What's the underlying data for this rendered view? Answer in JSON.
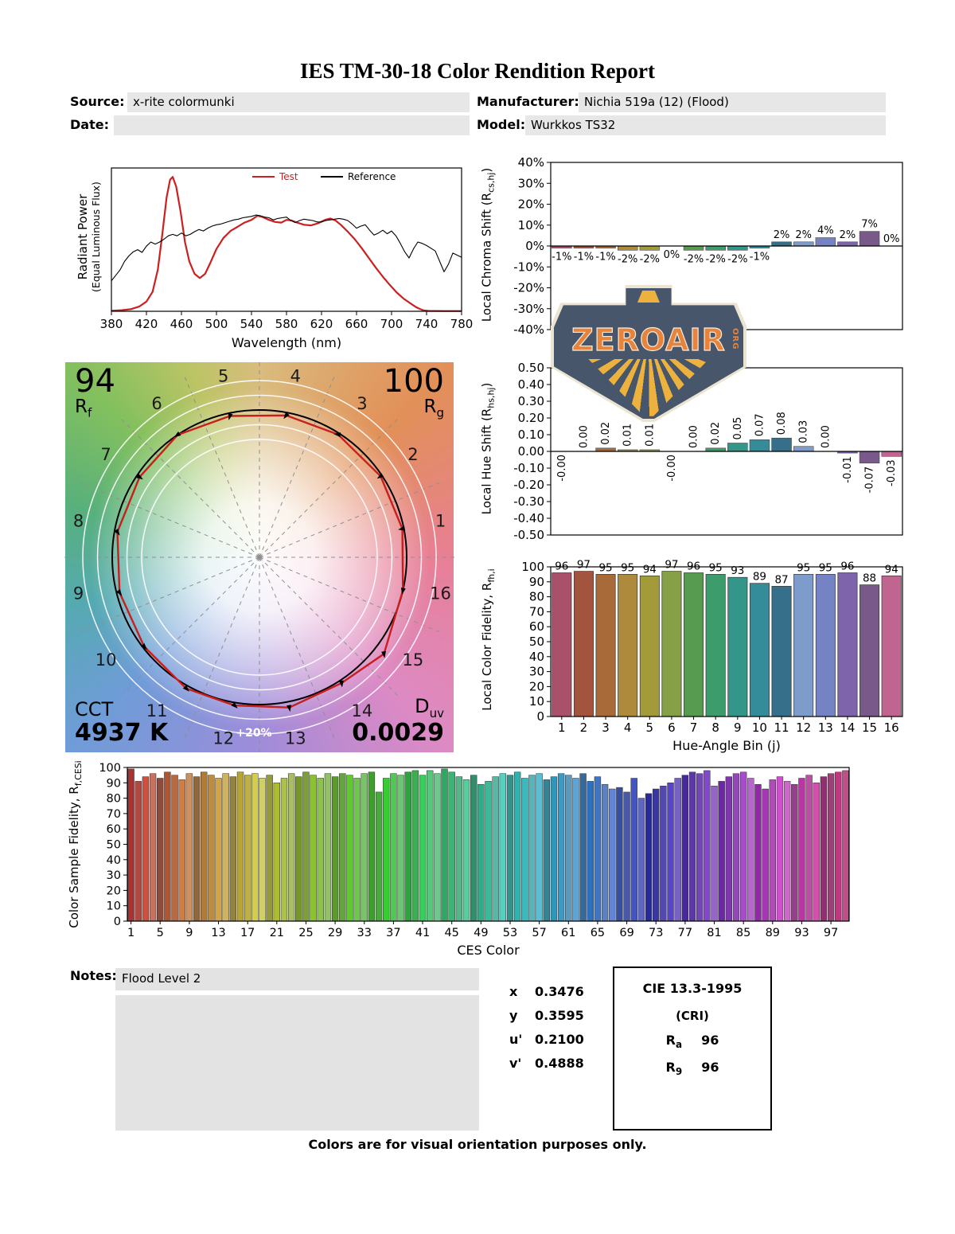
{
  "title": "IES TM-30-18 Color Rendition Report",
  "meta": {
    "source_label": "Source:",
    "source_value": "x-rite colormunki",
    "manufacturer_label": "Manufacturer:",
    "manufacturer_value": "Nichia 519a (12) (Flood)",
    "date_label": "Date:",
    "date_value": "",
    "model_label": "Model:",
    "model_value": "Wurkkos TS32"
  },
  "watermark": {
    "wordmark": "ZEROAIR",
    "org": "ORG",
    "accent": "#e8833c",
    "body_color": "#47566a",
    "ray_color": "#edb23e"
  },
  "cvg": {
    "rf_value": "94",
    "rf_label_main": "R",
    "rf_label_sub": "f",
    "rg_value": "100",
    "rg_label_main": "R",
    "rg_label_sub": "g",
    "cct_label": "CCT",
    "cct_value": "4937 K",
    "duv_label_main": "D",
    "duv_label_sub": "uv",
    "duv_value": "0.0029",
    "plus20": "+20%"
  },
  "notes": {
    "label": "Notes:",
    "value": "Flood Level 2"
  },
  "chromaticity": {
    "rows": [
      {
        "label": "x",
        "value": "0.3476"
      },
      {
        "label": "y",
        "value": "0.3595"
      },
      {
        "label": "u'",
        "value": "0.2100"
      },
      {
        "label": "v'",
        "value": "0.4888"
      }
    ]
  },
  "cri_box": {
    "title": "CIE 13.3-1995",
    "subtitle": "(CRI)",
    "ra_main": "R",
    "ra_sub": "a",
    "ra_value": "96",
    "r9_main": "R",
    "r9_sub": "9",
    "r9_value": "96"
  },
  "footer": "Colors are for visual orientation purposes only.",
  "chart_data": [
    {
      "id": "spd",
      "type": "line",
      "ylabel_lines": [
        "Radiant Power",
        "(Equal Luminous Flux)"
      ],
      "xlabel": "Wavelength (nm)",
      "xlim": [
        380,
        780
      ],
      "xticks": [
        380,
        420,
        460,
        500,
        540,
        580,
        620,
        660,
        700,
        740,
        780
      ],
      "legend": [
        {
          "name": "Test",
          "color": "#cc2020"
        },
        {
          "name": "Reference",
          "color": "#000000"
        }
      ],
      "series": [
        {
          "name": "Test",
          "color": "#cc2020",
          "width": 2.2,
          "points": [
            [
              380,
              0.004
            ],
            [
              392,
              0.008
            ],
            [
              402,
              0.015
            ],
            [
              412,
              0.035
            ],
            [
              420,
              0.07
            ],
            [
              427,
              0.14
            ],
            [
              433,
              0.3
            ],
            [
              438,
              0.55
            ],
            [
              443,
              0.82
            ],
            [
              447,
              0.95
            ],
            [
              450,
              0.97
            ],
            [
              454,
              0.9
            ],
            [
              459,
              0.72
            ],
            [
              464,
              0.5
            ],
            [
              469,
              0.36
            ],
            [
              475,
              0.27
            ],
            [
              481,
              0.24
            ],
            [
              487,
              0.27
            ],
            [
              493,
              0.35
            ],
            [
              500,
              0.45
            ],
            [
              508,
              0.53
            ],
            [
              516,
              0.58
            ],
            [
              524,
              0.61
            ],
            [
              532,
              0.64
            ],
            [
              540,
              0.66
            ],
            [
              547,
              0.69
            ],
            [
              553,
              0.68
            ],
            [
              560,
              0.66
            ],
            [
              567,
              0.645
            ],
            [
              574,
              0.64
            ],
            [
              580,
              0.66
            ],
            [
              586,
              0.655
            ],
            [
              592,
              0.64
            ],
            [
              600,
              0.625
            ],
            [
              608,
              0.62
            ],
            [
              616,
              0.635
            ],
            [
              624,
              0.66
            ],
            [
              630,
              0.67
            ],
            [
              636,
              0.655
            ],
            [
              642,
              0.625
            ],
            [
              650,
              0.575
            ],
            [
              658,
              0.52
            ],
            [
              666,
              0.455
            ],
            [
              674,
              0.385
            ],
            [
              682,
              0.315
            ],
            [
              690,
              0.25
            ],
            [
              698,
              0.19
            ],
            [
              706,
              0.135
            ],
            [
              714,
              0.09
            ],
            [
              722,
              0.055
            ],
            [
              728,
              0.03
            ],
            [
              733,
              0.015
            ],
            [
              737,
              0.006
            ],
            [
              742,
              0.003
            ],
            [
              760,
              0.002
            ],
            [
              780,
              0.002
            ]
          ]
        },
        {
          "name": "Reference",
          "color": "#000000",
          "width": 1.1,
          "points": [
            [
              380,
              0.22
            ],
            [
              385,
              0.26
            ],
            [
              390,
              0.3
            ],
            [
              395,
              0.36
            ],
            [
              400,
              0.4
            ],
            [
              405,
              0.43
            ],
            [
              410,
              0.445
            ],
            [
              415,
              0.425
            ],
            [
              420,
              0.47
            ],
            [
              425,
              0.5
            ],
            [
              430,
              0.485
            ],
            [
              435,
              0.5
            ],
            [
              440,
              0.52
            ],
            [
              445,
              0.545
            ],
            [
              450,
              0.555
            ],
            [
              455,
              0.545
            ],
            [
              460,
              0.565
            ],
            [
              465,
              0.545
            ],
            [
              470,
              0.555
            ],
            [
              475,
              0.575
            ],
            [
              480,
              0.59
            ],
            [
              485,
              0.58
            ],
            [
              490,
              0.6
            ],
            [
              495,
              0.615
            ],
            [
              500,
              0.625
            ],
            [
              505,
              0.63
            ],
            [
              510,
              0.64
            ],
            [
              515,
              0.65
            ],
            [
              520,
              0.66
            ],
            [
              525,
              0.665
            ],
            [
              530,
              0.675
            ],
            [
              535,
              0.68
            ],
            [
              540,
              0.685
            ],
            [
              545,
              0.695
            ],
            [
              550,
              0.69
            ],
            [
              555,
              0.68
            ],
            [
              560,
              0.675
            ],
            [
              565,
              0.66
            ],
            [
              570,
              0.67
            ],
            [
              575,
              0.675
            ],
            [
              580,
              0.68
            ],
            [
              585,
              0.655
            ],
            [
              590,
              0.64
            ],
            [
              595,
              0.655
            ],
            [
              600,
              0.665
            ],
            [
              605,
              0.66
            ],
            [
              610,
              0.655
            ],
            [
              615,
              0.645
            ],
            [
              620,
              0.645
            ],
            [
              625,
              0.655
            ],
            [
              630,
              0.66
            ],
            [
              635,
              0.665
            ],
            [
              640,
              0.67
            ],
            [
              645,
              0.665
            ],
            [
              650,
              0.655
            ],
            [
              655,
              0.63
            ],
            [
              660,
              0.6
            ],
            [
              665,
              0.615
            ],
            [
              670,
              0.625
            ],
            [
              675,
              0.585
            ],
            [
              680,
              0.55
            ],
            [
              685,
              0.565
            ],
            [
              690,
              0.585
            ],
            [
              695,
              0.56
            ],
            [
              700,
              0.58
            ],
            [
              705,
              0.545
            ],
            [
              710,
              0.49
            ],
            [
              715,
              0.43
            ],
            [
              720,
              0.385
            ],
            [
              725,
              0.45
            ],
            [
              730,
              0.5
            ],
            [
              735,
              0.49
            ],
            [
              740,
              0.475
            ],
            [
              745,
              0.455
            ],
            [
              750,
              0.435
            ],
            [
              755,
              0.36
            ],
            [
              760,
              0.285
            ],
            [
              765,
              0.34
            ],
            [
              770,
              0.42
            ],
            [
              775,
              0.405
            ],
            [
              780,
              0.39
            ]
          ]
        }
      ]
    },
    {
      "id": "chroma_shift",
      "type": "bar",
      "ylabel_parts": [
        "Local Chroma Shift (R",
        "cs,hj",
        ")"
      ],
      "ylim": [
        -40,
        40
      ],
      "yticks": [
        40,
        30,
        20,
        10,
        0,
        -10,
        -20,
        -30,
        -40
      ],
      "ytick_labels": [
        "40%",
        "30%",
        "20%",
        "10%",
        "0%",
        "-10%",
        "-20%",
        "-30%",
        "-40%"
      ],
      "categories": [
        "1",
        "2",
        "3",
        "4",
        "5",
        "6",
        "7",
        "8",
        "9",
        "10",
        "11",
        "12",
        "13",
        "14",
        "15",
        "16"
      ],
      "values": [
        -1,
        -1,
        -1,
        -2,
        -2,
        0,
        -2,
        -2,
        -2,
        -1,
        2,
        2,
        4,
        2,
        7,
        0
      ],
      "labels": [
        "-1%",
        "-1%",
        "-1%",
        "-2%",
        "-2%",
        "0%",
        "-2%",
        "-2%",
        "-2%",
        "-1%",
        "2%",
        "2%",
        "4%",
        "2%",
        "7%",
        "0%"
      ],
      "label_side": [
        "b",
        "b",
        "b",
        "b",
        "b",
        "b",
        "b",
        "b",
        "b",
        "b",
        "a",
        "a",
        "a",
        "a",
        "a",
        "a"
      ],
      "colors": [
        "#a9506a",
        "#a2543f",
        "#a96a39",
        "#ad8a3c",
        "#a39a3a",
        "#85a046",
        "#569b50",
        "#3d9c6c",
        "#349689",
        "#348c9a",
        "#356f89",
        "#7e9ccb",
        "#7583c4",
        "#7e64ab",
        "#79588a",
        "#bf6590"
      ]
    },
    {
      "id": "hue_shift",
      "type": "bar",
      "ylabel_parts": [
        "Local Hue Shift (R",
        "hs,hj",
        ")"
      ],
      "ylim": [
        -0.5,
        0.5
      ],
      "yticks": [
        0.5,
        0.4,
        0.3,
        0.2,
        0.1,
        0,
        -0.1,
        -0.2,
        -0.3,
        -0.4,
        -0.5
      ],
      "ytick_labels": [
        "0.50",
        "0.40",
        "0.30",
        "0.20",
        "0.10",
        "0.00",
        "-0.10",
        "-0.20",
        "-0.30",
        "-0.40",
        "-0.50"
      ],
      "categories": [
        "1",
        "2",
        "3",
        "4",
        "5",
        "6",
        "7",
        "8",
        "9",
        "10",
        "11",
        "12",
        "13",
        "14",
        "15",
        "16"
      ],
      "values": [
        -0.0,
        0.0,
        0.02,
        0.01,
        0.01,
        -0.0,
        0.0,
        0.02,
        0.05,
        0.07,
        0.08,
        0.03,
        0.0,
        -0.01,
        -0.07,
        -0.03
      ],
      "labels": [
        "-0.00",
        "0.00",
        "0.02",
        "0.01",
        "0.01",
        "-0.00",
        "0.00",
        "0.02",
        "0.05",
        "0.07",
        "0.08",
        "0.03",
        "0.00",
        "-0.01",
        "-0.07",
        "-0.03"
      ]
    },
    {
      "id": "rf_local",
      "type": "bar",
      "ylabel_parts": [
        "Local Color Fidelity, R",
        "fh,i",
        ""
      ],
      "xlabel": "Hue-Angle Bin (j)",
      "ylim": [
        0,
        100
      ],
      "yticks": [
        0,
        10,
        20,
        30,
        40,
        50,
        60,
        70,
        80,
        90,
        100
      ],
      "categories": [
        "1",
        "2",
        "3",
        "4",
        "5",
        "6",
        "7",
        "8",
        "9",
        "10",
        "11",
        "12",
        "13",
        "14",
        "15",
        "16"
      ],
      "values": [
        96,
        97,
        95,
        95,
        94,
        97,
        96,
        95,
        93,
        89,
        87,
        95,
        95,
        96,
        88,
        94
      ]
    },
    {
      "id": "ces",
      "type": "bar",
      "ylabel_parts": [
        "Color Sample Fidelity, R",
        "f,CESi",
        ""
      ],
      "xlabel": "CES Color",
      "ylim": [
        0,
        100
      ],
      "yticks": [
        0,
        10,
        20,
        30,
        40,
        50,
        60,
        70,
        80,
        90,
        100
      ],
      "xticks": [
        1,
        5,
        9,
        13,
        17,
        21,
        25,
        29,
        33,
        37,
        41,
        45,
        49,
        53,
        57,
        61,
        65,
        69,
        73,
        77,
        81,
        85,
        89,
        93,
        97
      ],
      "values": [
        99,
        91,
        94,
        96,
        93,
        97,
        95,
        92,
        96,
        94,
        97,
        95,
        93,
        96,
        94,
        97,
        95,
        96,
        93,
        95,
        90,
        93,
        96,
        94,
        97,
        95,
        93,
        96,
        94,
        96,
        95,
        93,
        96,
        97,
        84,
        93,
        96,
        95,
        97,
        98,
        95,
        98,
        96,
        99,
        97,
        94,
        92,
        95,
        89,
        91,
        94,
        96,
        95,
        97,
        93,
        95,
        96,
        92,
        94,
        96,
        95,
        93,
        96,
        91,
        94,
        89,
        86,
        87,
        84,
        93,
        80,
        83,
        86,
        88,
        90,
        93,
        95,
        97,
        96,
        98,
        88,
        91,
        94,
        96,
        97,
        93,
        89,
        86,
        92,
        94,
        91,
        89,
        93,
        95,
        90,
        94,
        96,
        97,
        98
      ]
    }
  ]
}
